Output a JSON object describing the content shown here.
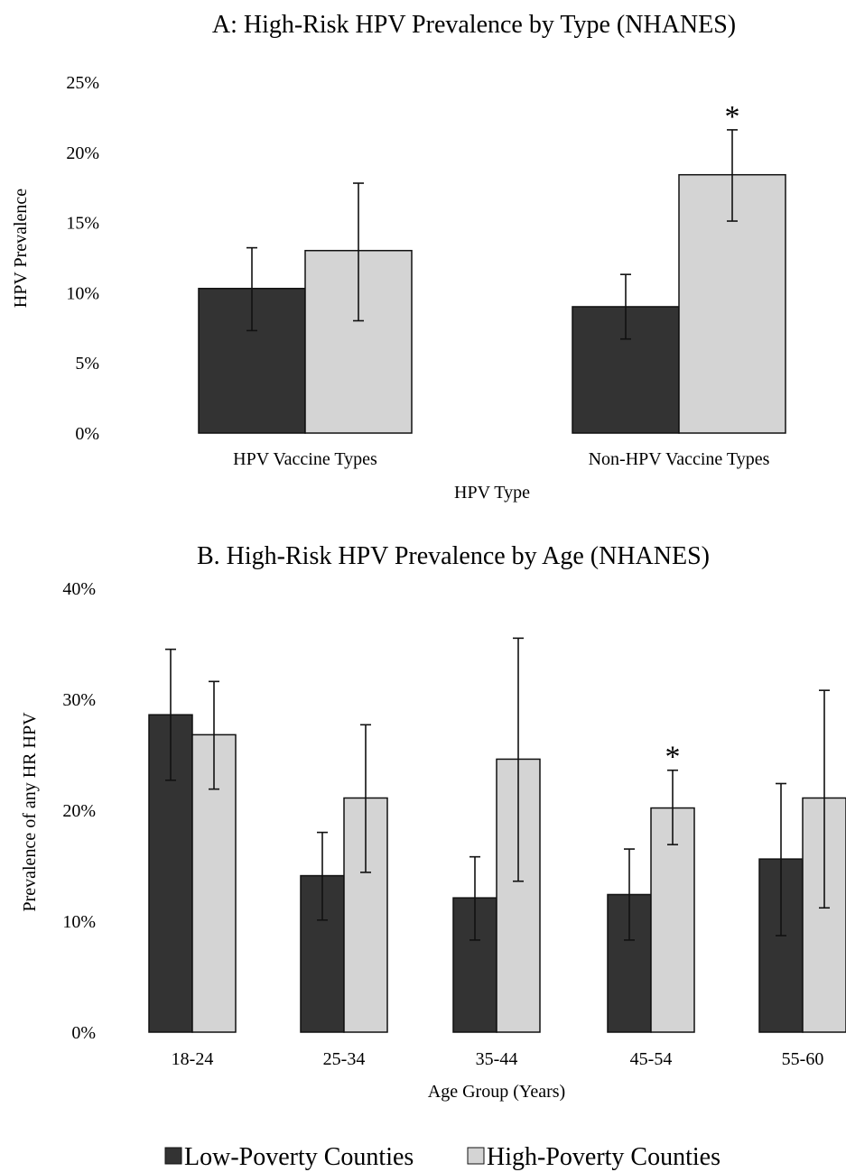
{
  "legend": {
    "low_label": "Low-Poverty Counties",
    "high_label": "High-Poverty Counties"
  },
  "colors": {
    "low": "#333333",
    "high": "#d4d4d4",
    "stroke": "#111111"
  },
  "chart_data": [
    {
      "type": "bar",
      "title": "A: High-Risk HPV Prevalence by Type (NHANES)",
      "xlabel": "HPV Type",
      "ylabel": "HPV Prevalence",
      "ylim": [
        0,
        25
      ],
      "yticks": [
        "0%",
        "5%",
        "10%",
        "15%",
        "20%",
        "25%"
      ],
      "grid": false,
      "categories": [
        "HPV Vaccine Types",
        "Non-HPV Vaccine Types"
      ],
      "series": [
        {
          "name": "Low-Poverty Counties",
          "values": [
            10.3,
            9.0
          ],
          "err_low": [
            7.3,
            6.7
          ],
          "err_high": [
            13.2,
            11.3
          ]
        },
        {
          "name": "High-Poverty Counties",
          "values": [
            13.0,
            18.4
          ],
          "err_low": [
            8.0,
            15.1
          ],
          "err_high": [
            17.8,
            21.6
          ]
        }
      ],
      "annotations": [
        {
          "text": "*",
          "category_index": 1,
          "series_index": 1
        }
      ]
    },
    {
      "type": "bar",
      "title": "B. High-Risk HPV Prevalence by Age (NHANES)",
      "xlabel": "Age Group (Years)",
      "ylabel": "Prevalence of any HR HPV",
      "ylim": [
        0,
        40
      ],
      "yticks": [
        "0%",
        "10%",
        "20%",
        "30%",
        "40%"
      ],
      "grid": false,
      "categories": [
        "18-24",
        "25-34",
        "35-44",
        "45-54",
        "55-60"
      ],
      "series": [
        {
          "name": "Low-Poverty Counties",
          "values": [
            28.6,
            14.1,
            12.1,
            12.4,
            15.6
          ],
          "err_low": [
            22.7,
            10.1,
            8.3,
            8.3,
            8.7
          ],
          "err_high": [
            34.5,
            18.0,
            15.8,
            16.5,
            22.4
          ]
        },
        {
          "name": "High-Poverty Counties",
          "values": [
            26.8,
            21.1,
            24.6,
            20.2,
            21.1
          ],
          "err_low": [
            21.9,
            14.4,
            13.6,
            16.9,
            11.2
          ],
          "err_high": [
            31.6,
            27.7,
            35.5,
            23.6,
            30.8
          ]
        }
      ],
      "annotations": [
        {
          "text": "*",
          "category_index": 3,
          "series_index": 1
        }
      ]
    }
  ]
}
